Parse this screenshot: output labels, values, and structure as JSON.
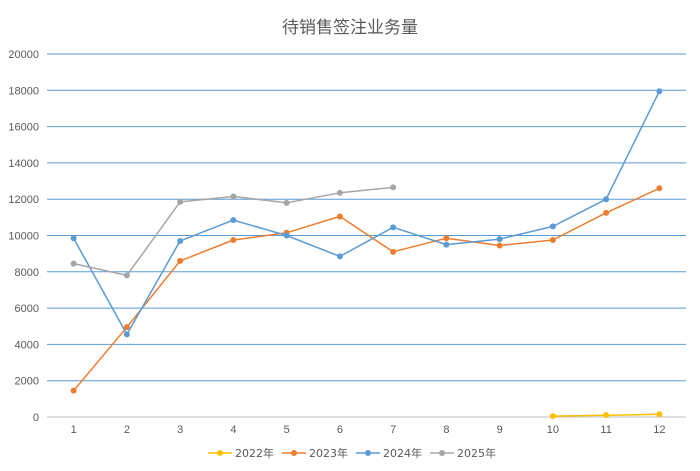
{
  "chart_data": {
    "type": "line",
    "title": "待销售签注业务量",
    "xlabel": "",
    "ylabel": "",
    "categories": [
      "1",
      "2",
      "3",
      "4",
      "5",
      "6",
      "7",
      "8",
      "9",
      "10",
      "11",
      "12"
    ],
    "ylim": [
      0,
      20000
    ],
    "yticks": [
      0,
      2000,
      4000,
      6000,
      8000,
      10000,
      12000,
      14000,
      16000,
      18000,
      20000
    ],
    "grid": true,
    "legend_position": "bottom",
    "series": [
      {
        "name": "2022年",
        "color": "#FFC000",
        "values": [
          null,
          null,
          null,
          null,
          null,
          null,
          null,
          null,
          null,
          50,
          100,
          150
        ]
      },
      {
        "name": "2023年",
        "color": "#ED7D31",
        "values": [
          1450,
          4950,
          8600,
          9750,
          10150,
          11050,
          9100,
          9850,
          9450,
          9750,
          11250,
          12600
        ]
      },
      {
        "name": "2024年",
        "color": "#5B9BD5",
        "values": [
          9850,
          4550,
          9700,
          10850,
          10000,
          8850,
          10450,
          9500,
          9800,
          10500,
          12000,
          17950
        ]
      },
      {
        "name": "2025年",
        "color": "#A5A5A5",
        "values": [
          8450,
          7800,
          11850,
          12150,
          11800,
          12350,
          12650,
          null,
          null,
          null,
          null,
          null
        ]
      }
    ]
  }
}
